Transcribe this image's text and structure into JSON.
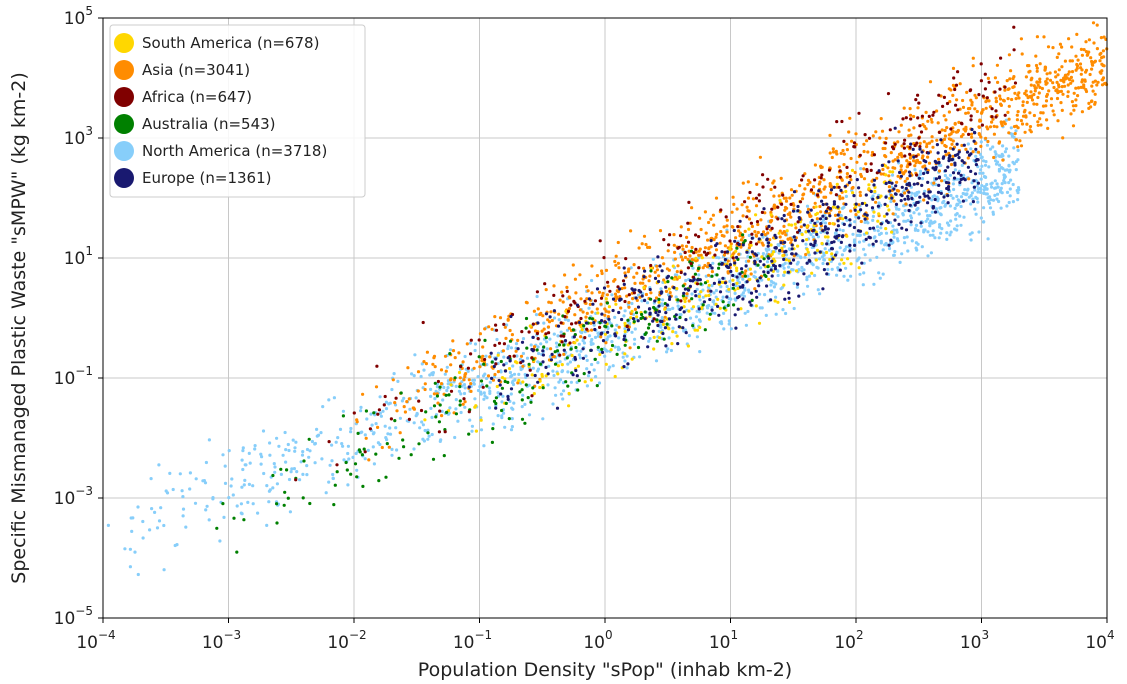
{
  "chart_data": {
    "type": "scatter",
    "xlabel": "Population Density \"sPop\" (inhab km-2)",
    "ylabel": "Specific Mismanaged Plastic Waste \"sMPW\" (kg km-2)",
    "x_scale": "log",
    "y_scale": "log",
    "xlim": [
      0.0001,
      10000
    ],
    "ylim": [
      1e-05,
      100000
    ],
    "x_ticks": [
      {
        "value": 0.0001,
        "base": "10",
        "exp": "−4"
      },
      {
        "value": 0.001,
        "base": "10",
        "exp": "−3"
      },
      {
        "value": 0.01,
        "base": "10",
        "exp": "−2"
      },
      {
        "value": 0.1,
        "base": "10",
        "exp": "−1"
      },
      {
        "value": 1,
        "base": "10",
        "exp": "0"
      },
      {
        "value": 10,
        "base": "10",
        "exp": "1"
      },
      {
        "value": 100,
        "base": "10",
        "exp": "2"
      },
      {
        "value": 1000,
        "base": "10",
        "exp": "3"
      },
      {
        "value": 10000,
        "base": "10",
        "exp": "4"
      }
    ],
    "y_ticks": [
      {
        "value": 1e-05,
        "base": "10",
        "exp": "−5"
      },
      {
        "value": 0.001,
        "base": "10",
        "exp": "−3"
      },
      {
        "value": 0.1,
        "base": "10",
        "exp": "−1"
      },
      {
        "value": 10,
        "base": "10",
        "exp": "1"
      },
      {
        "value": 1000,
        "base": "10",
        "exp": "3"
      },
      {
        "value": 100000,
        "base": "10",
        "exp": "5"
      }
    ],
    "grid": true,
    "legend_position": "top-left",
    "series": [
      {
        "name": "South America (n=678)",
        "color": "#ffd700",
        "n": 678
      },
      {
        "name": "Asia (n=3041)",
        "color": "#ff8c00",
        "n": 3041
      },
      {
        "name": "Africa (n=647)",
        "color": "#800000",
        "n": 647
      },
      {
        "name": "Australia (n=543)",
        "color": "#008000",
        "n": 543
      },
      {
        "name": "North America (n=3718)",
        "color": "#87cefa",
        "n": 3718
      },
      {
        "name": "Europe (n=1361)",
        "color": "#191970",
        "n": 1361
      }
    ],
    "point_summary": [
      {
        "series": "South America (n=678)",
        "log10_x_range": [
          -1.7,
          2.3
        ],
        "trend": "log10(y) ≈ 1.0·log10(x) − 0.3"
      },
      {
        "series": "Asia (n=3041)",
        "log10_x_range": [
          -2.0,
          4.0
        ],
        "trend": "log10(y) ≈ 1.0·log10(x) + 0.3"
      },
      {
        "series": "Africa (n=647)",
        "log10_x_range": [
          -2.5,
          3.3
        ],
        "trend": "log10(y) ≈ 1.1·log10(x) + 0.4"
      },
      {
        "series": "Australia (n=543)",
        "log10_x_range": [
          -3.3,
          1.3
        ],
        "trend": "log10(y) ≈ 1.0·log10(x) − 0.3"
      },
      {
        "series": "North America (n=3718)",
        "log10_x_range": [
          -4.0,
          3.3
        ],
        "trend": "log10(y) ≈ 0.85·log10(x) − 0.3"
      },
      {
        "series": "Europe (n=1361)",
        "log10_x_range": [
          -1.2,
          3.0
        ],
        "trend": "log10(y) ≈ 0.95·log10(x) − 0.2"
      }
    ]
  }
}
